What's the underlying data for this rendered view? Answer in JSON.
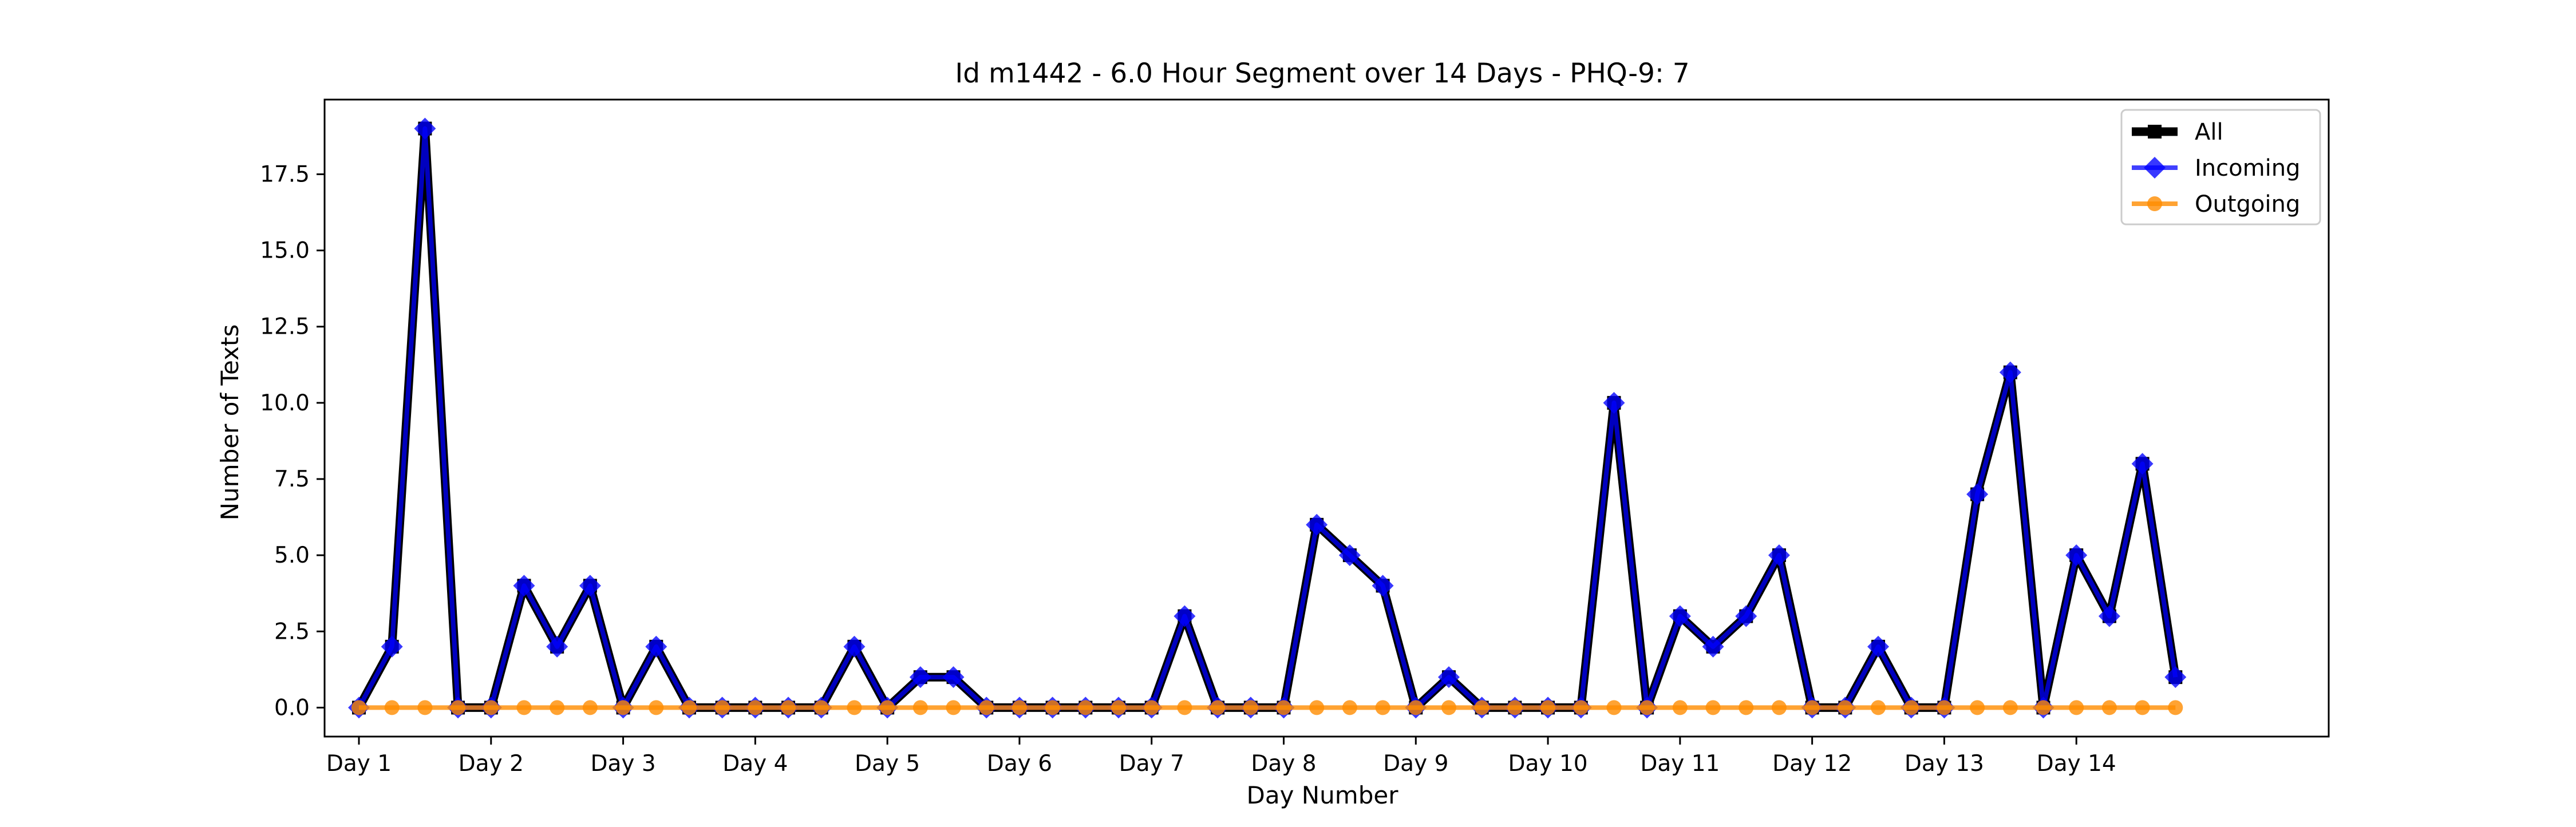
{
  "chart_data": {
    "type": "line",
    "title": "Id m1442 - 6.0 Hour Segment over 14 Days - PHQ-9: 7",
    "xlabel": "Day Number",
    "ylabel": "Number of Texts",
    "x_tick_labels": [
      "Day 1",
      "Day 2",
      "Day 3",
      "Day 4",
      "Day 5",
      "Day 6",
      "Day 7",
      "Day 8",
      "Day 9",
      "Day 10",
      "Day 11",
      "Day 12",
      "Day 13",
      "Day 14"
    ],
    "y_ticks": [
      0.0,
      2.5,
      5.0,
      7.5,
      10.0,
      12.5,
      15.0,
      17.5
    ],
    "y_tick_labels": [
      "0.0",
      "2.5",
      "5.0",
      "7.5",
      "10.0",
      "12.5",
      "15.0",
      "17.5"
    ],
    "xlim": [
      0.74,
      15.91
    ],
    "ylim": [
      -0.95,
      19.95
    ],
    "grid": false,
    "legend_position": "top-right",
    "x": [
      1,
      1.25,
      1.5,
      1.75,
      2,
      2.25,
      2.5,
      2.75,
      3,
      3.25,
      3.5,
      3.75,
      4,
      4.25,
      4.5,
      4.75,
      5,
      5.25,
      5.5,
      5.75,
      6,
      6.25,
      6.5,
      6.75,
      7,
      7.25,
      7.5,
      7.75,
      8,
      8.25,
      8.5,
      8.75,
      9,
      9.25,
      9.5,
      9.75,
      10,
      10.25,
      10.5,
      10.75,
      11,
      11.25,
      11.5,
      11.75,
      12,
      12.25,
      12.5,
      12.75,
      13,
      13.25,
      13.5,
      13.75,
      14,
      14.25,
      14.5,
      14.75
    ],
    "series": [
      {
        "name": "All",
        "color": "#000000",
        "marker": "square",
        "values": [
          0,
          2,
          19,
          0,
          0,
          4,
          2,
          4,
          0,
          2,
          0,
          0,
          0,
          0,
          0,
          2,
          0,
          1,
          1,
          0,
          0,
          0,
          0,
          0,
          0,
          3,
          0,
          0,
          0,
          6,
          5,
          4,
          0,
          1,
          0,
          0,
          0,
          0,
          10,
          0,
          3,
          2,
          3,
          5,
          0,
          0,
          2,
          0,
          0,
          7,
          11,
          0,
          5,
          3,
          8,
          1
        ]
      },
      {
        "name": "Incoming",
        "color": "#0000ff",
        "marker": "diamond",
        "values": [
          0,
          2,
          19,
          0,
          0,
          4,
          2,
          4,
          0,
          2,
          0,
          0,
          0,
          0,
          0,
          2,
          0,
          1,
          1,
          0,
          0,
          0,
          0,
          0,
          0,
          3,
          0,
          0,
          0,
          6,
          5,
          4,
          0,
          1,
          0,
          0,
          0,
          0,
          10,
          0,
          3,
          2,
          3,
          5,
          0,
          0,
          2,
          0,
          0,
          7,
          11,
          0,
          5,
          3,
          8,
          1
        ]
      },
      {
        "name": "Outgoing",
        "color": "#ff8c00",
        "marker": "circle",
        "values": [
          0,
          0,
          0,
          0,
          0,
          0,
          0,
          0,
          0,
          0,
          0,
          0,
          0,
          0,
          0,
          0,
          0,
          0,
          0,
          0,
          0,
          0,
          0,
          0,
          0,
          0,
          0,
          0,
          0,
          0,
          0,
          0,
          0,
          0,
          0,
          0,
          0,
          0,
          0,
          0,
          0,
          0,
          0,
          0,
          0,
          0,
          0,
          0,
          0,
          0,
          0,
          0,
          0,
          0,
          0,
          0
        ]
      }
    ]
  }
}
